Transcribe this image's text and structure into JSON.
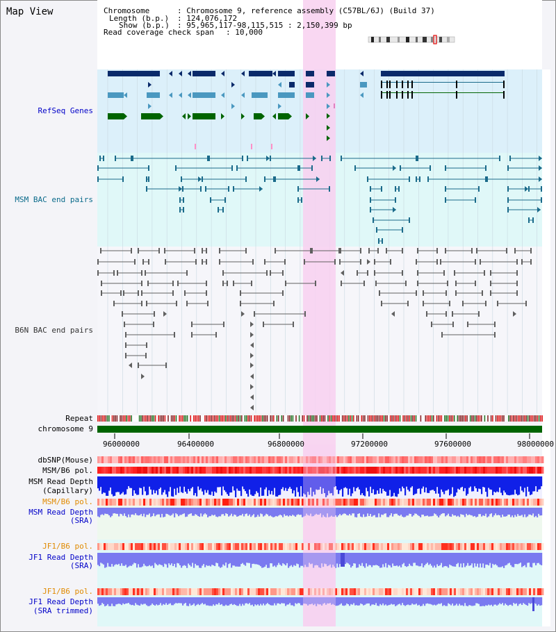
{
  "app": {
    "title": "Map View"
  },
  "header": {
    "chromosome_key": "Chromosome",
    "chromosome_value": ": Chromosome 9, reference assembly (C57BL/6J) (Build 37)",
    "length_key": "Length (b.p.)",
    "length_value": ": 124,076,172",
    "show_key": "Show (b.p.)",
    "show_value": ": 95,965,117-98,115,515 : 2,150,399 bp",
    "coverage_key": "Read coverage check span",
    "coverage_value": ": 10,000"
  },
  "tracks": {
    "refseq": "RefSeq Genes",
    "msm_bac": "MSM BAC end pairs",
    "b6n_bac": "B6N BAC end pairs",
    "repeat": "Repeat",
    "chromosome": "chromosome 9",
    "dbsnp": "dbSNP(Mouse)",
    "msm_b6_pol": "MSM/B6 pol.",
    "msm_read_depth_cap_1": "MSM Read Depth",
    "msm_read_depth_cap_2": "(Capillary)",
    "msm_b6_pol_sra": "MSM/B6 pol.",
    "msm_read_depth_sra_1": "MSM Read Depth",
    "msm_read_depth_sra_2": "(SRA)",
    "jf1_b6_pol": "JF1/B6 pol.",
    "jf1_read_depth_1": "JF1 Read Depth",
    "jf1_read_depth_2": "(SRA)",
    "jf1_b6_pol_2": "JF1/B6 pol.",
    "jf1_read_depth_trim_1": "JF1 Read Depth",
    "jf1_read_depth_trim_2": "(SRA trimmed)"
  },
  "axis": {
    "ticks": [
      "96000000",
      "96400000",
      "96800000",
      "97200000",
      "97600000",
      "98000000"
    ]
  },
  "colors": {
    "highlight": "#f8d0f0",
    "refseq_bg": "#dcf0fa",
    "msm_bg": "#e0f8f8",
    "gene_dark": "#0a2a6a",
    "gene_mid": "#4a98c0",
    "gene_green": "#006400",
    "bac_teal": "#1a6a8a",
    "bac_gray": "#606060",
    "depth_blue": "#1020e8",
    "depth_light": "#7a7af0"
  }
}
